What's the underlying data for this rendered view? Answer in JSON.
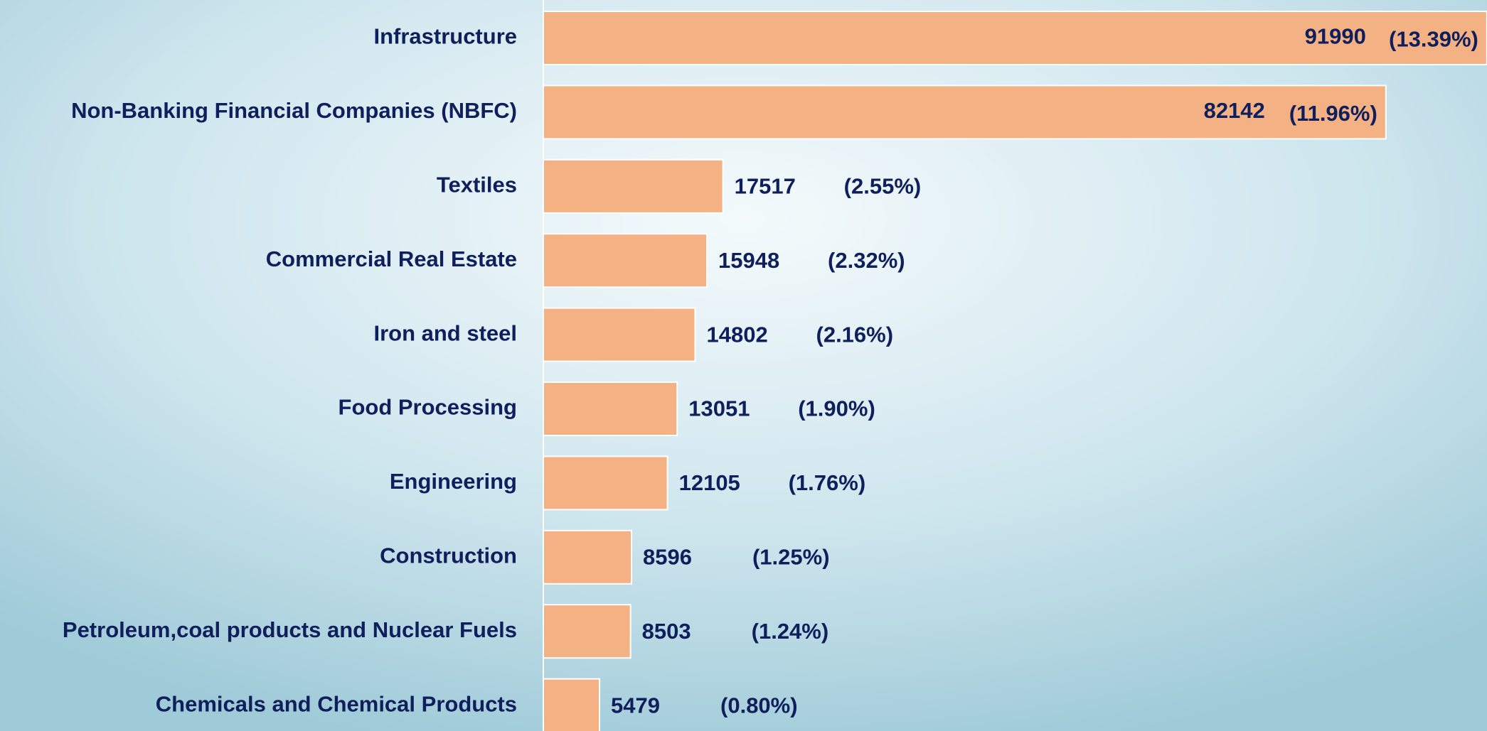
{
  "chart_data": {
    "type": "bar",
    "orientation": "horizontal",
    "categories": [
      "Infrastructure",
      "Non-Banking Financial Companies (NBFC)",
      "Textiles",
      "Commercial Real Estate",
      "Iron and steel",
      "Food Processing",
      "Engineering",
      "Construction",
      "Petroleum,coal products and Nuclear Fuels",
      "Chemicals and Chemical Products"
    ],
    "values": [
      91990,
      82142,
      17517,
      15948,
      14802,
      13051,
      12105,
      8596,
      8503,
      5479
    ],
    "share_labels": [
      "(13.39%)",
      "(11.96%)",
      "(2.55%)",
      "(2.32%)",
      "(2.16%)",
      "(1.90%)",
      "(1.76%)",
      "(1.25%)",
      "(1.24%)",
      "(0.80%)"
    ],
    "color": "#f4b183",
    "xlim": [
      0,
      92000
    ]
  }
}
